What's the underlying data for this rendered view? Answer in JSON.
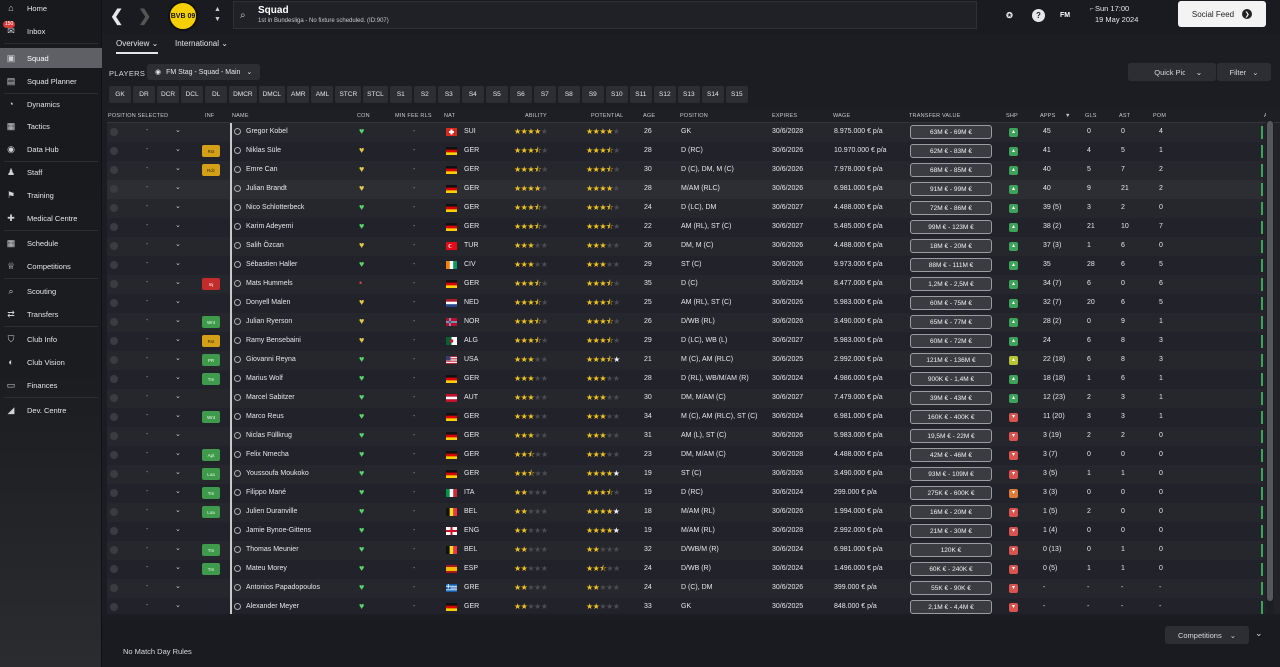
{
  "sidebar": {
    "inbox_badge": "150",
    "items": [
      {
        "label": "Home",
        "icon": "home-icon",
        "glyph": "⌂"
      },
      {
        "label": "Inbox",
        "icon": "inbox-icon",
        "glyph": "✉"
      },
      {
        "label": "Squad",
        "icon": "shirt-icon",
        "glyph": "▣"
      },
      {
        "label": "Squad Planner",
        "icon": "planner-icon",
        "glyph": "▤"
      },
      {
        "label": "Dynamics",
        "icon": "dynamics-icon",
        "glyph": "◔"
      },
      {
        "label": "Tactics",
        "icon": "tactics-icon",
        "glyph": "▦"
      },
      {
        "label": "Data Hub",
        "icon": "data-hub-icon",
        "glyph": "◉"
      },
      {
        "label": "Staff",
        "icon": "staff-icon",
        "glyph": "♟"
      },
      {
        "label": "Training",
        "icon": "training-icon",
        "glyph": "⚑"
      },
      {
        "label": "Medical Centre",
        "icon": "medical-icon",
        "glyph": "✚"
      },
      {
        "label": "Schedule",
        "icon": "calendar-icon",
        "glyph": "▦"
      },
      {
        "label": "Competitions",
        "icon": "trophy-icon",
        "glyph": "♕"
      },
      {
        "label": "Scouting",
        "icon": "scouting-icon",
        "glyph": "⌕"
      },
      {
        "label": "Transfers",
        "icon": "transfers-icon",
        "glyph": "⇄"
      },
      {
        "label": "Club Info",
        "icon": "shield-icon",
        "glyph": "⛉"
      },
      {
        "label": "Club Vision",
        "icon": "vision-icon",
        "glyph": "◐"
      },
      {
        "label": "Finances",
        "icon": "finances-icon",
        "glyph": "▭"
      },
      {
        "label": "Dev. Centre",
        "icon": "dev-centre-icon",
        "glyph": "◢"
      }
    ]
  },
  "header": {
    "club_badge": "BVB 09",
    "title": "Squad",
    "subtitle": "1st in Bundesliga - No fixture scheduled. (ID:907)",
    "day_time": "Sun 17:00",
    "date": "19 May 2024",
    "social_feed": "Social Feed",
    "fm_label": "FM",
    "help_label": "?",
    "notif_count": "5"
  },
  "tabs": {
    "overview": "Overview",
    "international": "International"
  },
  "players_bar": {
    "label": "PLAYERS",
    "view": "FM Stag - Squad - Main",
    "quick_pick": "Quick Pick",
    "filter": "Filter"
  },
  "positions": [
    "GK",
    "DR",
    "DCR",
    "DCL",
    "DL",
    "DMCR",
    "DMCL",
    "AMR",
    "AML",
    "STCR",
    "STCL",
    "S1",
    "S2",
    "S3",
    "S4",
    "S5",
    "S6",
    "S7",
    "S8",
    "S9",
    "S10",
    "S11",
    "S12",
    "S13",
    "S14",
    "S15"
  ],
  "columns": {
    "pos_sel": "POSITION SELECTED",
    "inf": "INF",
    "name": "NAME",
    "con": "CON",
    "min_fee": "MIN FEE RLS",
    "nat": "NAT",
    "ability": "ABILITY",
    "potential": "POTENTIAL",
    "age": "AGE",
    "position": "POSITION",
    "expires": "EXPIRES",
    "wage": "WAGE",
    "tv": "TRANSFER VALUE",
    "shp": "SHP",
    "apps": "APPS",
    "gls": "GLS",
    "ast": "AST",
    "pom": "POM",
    "av": "AV"
  },
  "colors": {
    "star": "#f0c420",
    "green": "#3ea35a",
    "orange": "#d4a017",
    "red": "#c42b2b"
  },
  "players": [
    {
      "name": "Gregor Kobel",
      "inf": "",
      "con": "g",
      "fee": "-",
      "nat": "SUI",
      "flag": "sui",
      "ab": 4,
      "pot": 4,
      "potw": 0,
      "age": "26",
      "pos": "GK",
      "exp": "30/6/2028",
      "wage": "8.975.000 € p/a",
      "tv": "63M € - 69M €",
      "shp": "g",
      "apps": "45",
      "gls": "0",
      "ast": "0",
      "pom": "4"
    },
    {
      "name": "Niklas Süle",
      "inf": "Rst",
      "con": "y",
      "fee": "-",
      "nat": "GER",
      "flag": "ger",
      "ab": 3.5,
      "pot": 3.5,
      "potw": 0,
      "age": "28",
      "pos": "D (RC)",
      "exp": "30/6/2026",
      "wage": "10.970.000 € p/a",
      "tv": "62M € - 83M €",
      "shp": "g",
      "apps": "41",
      "gls": "4",
      "ast": "5",
      "pom": "1"
    },
    {
      "name": "Emre Can",
      "inf": "Rdz",
      "con": "y",
      "fee": "-",
      "nat": "GER",
      "flag": "ger",
      "ab": 3.5,
      "pot": 3.5,
      "potw": 0,
      "age": "30",
      "pos": "D (C), DM, M (C)",
      "exp": "30/6/2026",
      "wage": "7.978.000 € p/a",
      "tv": "68M € - 85M €",
      "shp": "g",
      "apps": "40",
      "gls": "5",
      "ast": "7",
      "pom": "2"
    },
    {
      "name": "Julian Brandt",
      "inf": "",
      "con": "y",
      "fee": "-",
      "nat": "GER",
      "flag": "ger",
      "ab": 4,
      "pot": 4,
      "potw": 0,
      "age": "28",
      "pos": "M/AM (RLC)",
      "exp": "30/6/2026",
      "wage": "6.981.000 € p/a",
      "tv": "91M € - 99M €",
      "shp": "g",
      "apps": "40",
      "gls": "9",
      "ast": "21",
      "pom": "2"
    },
    {
      "name": "Nico Schlotterbeck",
      "inf": "",
      "con": "g",
      "fee": "-",
      "nat": "GER",
      "flag": "ger",
      "ab": 3.5,
      "pot": 3.5,
      "potw": 0,
      "age": "24",
      "pos": "D (LC), DM",
      "exp": "30/6/2027",
      "wage": "4.488.000 € p/a",
      "tv": "72M € - 86M €",
      "shp": "g",
      "apps": "39 (5)",
      "gls": "3",
      "ast": "2",
      "pom": "0"
    },
    {
      "name": "Karim Adeyemi",
      "inf": "",
      "con": "g",
      "fee": "-",
      "nat": "GER",
      "flag": "ger",
      "ab": 3.5,
      "pot": 3.5,
      "potw": 0,
      "age": "22",
      "pos": "AM (RL), ST (C)",
      "exp": "30/6/2027",
      "wage": "5.485.000 € p/a",
      "tv": "99M € - 123M €",
      "shp": "g",
      "apps": "38 (2)",
      "gls": "21",
      "ast": "10",
      "pom": "7"
    },
    {
      "name": "Salih Özcan",
      "inf": "",
      "con": "y",
      "fee": "-",
      "nat": "TUR",
      "flag": "tur",
      "ab": 3,
      "pot": 3,
      "potw": 0,
      "age": "26",
      "pos": "DM, M (C)",
      "exp": "30/6/2026",
      "wage": "4.488.000 € p/a",
      "tv": "18M € - 20M €",
      "shp": "g",
      "apps": "37 (3)",
      "gls": "1",
      "ast": "6",
      "pom": "0"
    },
    {
      "name": "Sébastien Haller",
      "inf": "",
      "con": "g",
      "fee": "-",
      "nat": "CIV",
      "flag": "civ",
      "ab": 3,
      "pot": 3,
      "potw": 0,
      "age": "29",
      "pos": "ST (C)",
      "exp": "30/6/2026",
      "wage": "9.973.000 € p/a",
      "tv": "88M € - 111M €",
      "shp": "g",
      "apps": "35",
      "gls": "28",
      "ast": "6",
      "pom": "5"
    },
    {
      "name": "Mats Hummels",
      "inf": "Inj",
      "con": "r",
      "fee": "-",
      "nat": "GER",
      "flag": "ger",
      "ab": 3.5,
      "pot": 3.5,
      "potw": 0,
      "age": "35",
      "pos": "D (C)",
      "exp": "30/6/2024",
      "wage": "8.477.000 € p/a",
      "tv": "1,2M € - 2,5M €",
      "shp": "g",
      "apps": "34 (7)",
      "gls": "6",
      "ast": "0",
      "pom": "6"
    },
    {
      "name": "Donyell Malen",
      "inf": "",
      "con": "y",
      "fee": "-",
      "nat": "NED",
      "flag": "ned",
      "ab": 3.5,
      "pot": 3.5,
      "potw": 0,
      "age": "25",
      "pos": "AM (RL), ST (C)",
      "exp": "30/6/2026",
      "wage": "5.983.000 € p/a",
      "tv": "60M € - 75M €",
      "shp": "g",
      "apps": "32 (7)",
      "gls": "20",
      "ast": "6",
      "pom": "5"
    },
    {
      "name": "Julian Ryerson",
      "inf": "Wnt",
      "con": "y",
      "fee": "-",
      "nat": "NOR",
      "flag": "nor",
      "ab": 3.5,
      "pot": 3.5,
      "potw": 0,
      "age": "26",
      "pos": "D/WB (RL)",
      "exp": "30/6/2026",
      "wage": "3.490.000 € p/a",
      "tv": "65M € - 77M €",
      "shp": "g",
      "apps": "28 (2)",
      "gls": "0",
      "ast": "9",
      "pom": "1"
    },
    {
      "name": "Ramy Bensebaini",
      "inf": "Rst",
      "con": "y",
      "fee": "-",
      "nat": "ALG",
      "flag": "alg",
      "ab": 3.5,
      "pot": 3.5,
      "potw": 0,
      "age": "29",
      "pos": "D (LC), WB (L)",
      "exp": "30/6/2027",
      "wage": "5.983.000 € p/a",
      "tv": "60M € - 72M €",
      "shp": "g",
      "apps": "24",
      "gls": "6",
      "ast": "8",
      "pom": "3"
    },
    {
      "name": "Giovanni Reyna",
      "inf": "PR",
      "con": "g",
      "fee": "-",
      "nat": "USA",
      "flag": "usa",
      "ab": 3,
      "pot": 3.5,
      "potw": 1,
      "age": "21",
      "pos": "M (C), AM (RLC)",
      "exp": "30/6/2025",
      "wage": "2.992.000 € p/a",
      "tv": "121M € - 136M €",
      "shp": "y",
      "apps": "22 (18)",
      "gls": "6",
      "ast": "8",
      "pom": "3"
    },
    {
      "name": "Marius Wolf",
      "inf": "Tm",
      "con": "g",
      "fee": "-",
      "nat": "GER",
      "flag": "ger",
      "ab": 3,
      "pot": 3,
      "potw": 0,
      "age": "28",
      "pos": "D (RL), WB/M/AM (R)",
      "exp": "30/6/2024",
      "wage": "4.986.000 € p/a",
      "tv": "900K € - 1,4M €",
      "shp": "g",
      "apps": "18 (18)",
      "gls": "1",
      "ast": "6",
      "pom": "1"
    },
    {
      "name": "Marcel Sabitzer",
      "inf": "",
      "con": "g",
      "fee": "-",
      "nat": "AUT",
      "flag": "aut",
      "ab": 3,
      "pot": 3,
      "potw": 0,
      "age": "30",
      "pos": "DM, M/AM (C)",
      "exp": "30/6/2027",
      "wage": "7.479.000 € p/a",
      "tv": "39M € - 43M €",
      "shp": "g",
      "apps": "12 (23)",
      "gls": "2",
      "ast": "3",
      "pom": "1"
    },
    {
      "name": "Marco Reus",
      "inf": "Wnt",
      "con": "g",
      "fee": "-",
      "nat": "GER",
      "flag": "ger",
      "ab": 3,
      "pot": 3,
      "potw": 0,
      "age": "34",
      "pos": "M (C), AM (RLC), ST (C)",
      "exp": "30/6/2024",
      "wage": "6.981.000 € p/a",
      "tv": "160K € - 400K €",
      "shp": "r",
      "apps": "11 (20)",
      "gls": "3",
      "ast": "3",
      "pom": "1"
    },
    {
      "name": "Niclas Füllkrug",
      "inf": "",
      "con": "g",
      "fee": "-",
      "nat": "GER",
      "flag": "ger",
      "ab": 3,
      "pot": 3,
      "potw": 0,
      "age": "31",
      "pos": "AM (L), ST (C)",
      "exp": "30/6/2026",
      "wage": "5.983.000 € p/a",
      "tv": "19,5M € - 22M €",
      "shp": "r",
      "apps": "3 (19)",
      "gls": "2",
      "ast": "2",
      "pom": "0"
    },
    {
      "name": "Felix Nmecha",
      "inf": "Apt",
      "con": "g",
      "fee": "-",
      "nat": "GER",
      "flag": "ger",
      "ab": 2.5,
      "pot": 3,
      "potw": 0,
      "age": "23",
      "pos": "DM, M/AM (C)",
      "exp": "30/6/2028",
      "wage": "4.488.000 € p/a",
      "tv": "42M € - 46M €",
      "shp": "r",
      "apps": "3 (7)",
      "gls": "0",
      "ast": "0",
      "pom": "0"
    },
    {
      "name": "Youssoufa Moukoko",
      "inf": "Loa",
      "con": "g",
      "fee": "-",
      "nat": "GER",
      "flag": "ger",
      "ab": 2.5,
      "pot": 4,
      "potw": 1,
      "age": "19",
      "pos": "ST (C)",
      "exp": "30/6/2026",
      "wage": "3.490.000 € p/a",
      "tv": "93M € - 109M €",
      "shp": "r",
      "apps": "3 (5)",
      "gls": "1",
      "ast": "1",
      "pom": "0"
    },
    {
      "name": "Filippo Mané",
      "inf": "Tm",
      "con": "g",
      "fee": "-",
      "nat": "ITA",
      "flag": "ita",
      "ab": 2,
      "pot": 3.5,
      "potw": 0,
      "age": "19",
      "pos": "D (RC)",
      "exp": "30/6/2024",
      "wage": "299.000 € p/a",
      "tv": "275K € - 600K €",
      "shp": "o",
      "apps": "3 (3)",
      "gls": "0",
      "ast": "0",
      "pom": "0"
    },
    {
      "name": "Julien Duranville",
      "inf": "Loa",
      "con": "g",
      "fee": "-",
      "nat": "BEL",
      "flag": "bel",
      "ab": 2,
      "pot": 4,
      "potw": 1,
      "age": "18",
      "pos": "M/AM (RL)",
      "exp": "30/6/2026",
      "wage": "1.994.000 € p/a",
      "tv": "16M € - 20M €",
      "shp": "r",
      "apps": "1 (5)",
      "gls": "2",
      "ast": "0",
      "pom": "0"
    },
    {
      "name": "Jamie Bynoe-Gittens",
      "inf": "",
      "con": "g",
      "fee": "-",
      "nat": "ENG",
      "flag": "eng",
      "ab": 2,
      "pot": 4,
      "potw": 1,
      "age": "19",
      "pos": "M/AM (RL)",
      "exp": "30/6/2028",
      "wage": "2.992.000 € p/a",
      "tv": "21M € - 30M €",
      "shp": "r",
      "apps": "1 (4)",
      "gls": "0",
      "ast": "0",
      "pom": "0"
    },
    {
      "name": "Thomas Meunier",
      "inf": "Tm",
      "con": "g",
      "fee": "-",
      "nat": "BEL",
      "flag": "bel",
      "ab": 2,
      "pot": 2,
      "potw": 0,
      "age": "32",
      "pos": "D/WB/M (R)",
      "exp": "30/6/2024",
      "wage": "6.981.000 € p/a",
      "tv": "120K €",
      "shp": "r",
      "apps": "0 (13)",
      "gls": "0",
      "ast": "1",
      "pom": "0"
    },
    {
      "name": "Mateu Morey",
      "inf": "Tm",
      "con": "g",
      "fee": "-",
      "nat": "ESP",
      "flag": "esp",
      "ab": 2,
      "pot": 2.5,
      "potw": 0,
      "age": "24",
      "pos": "D/WB (R)",
      "exp": "30/6/2024",
      "wage": "1.496.000 € p/a",
      "tv": "60K € - 240K €",
      "shp": "r",
      "apps": "0 (5)",
      "gls": "1",
      "ast": "1",
      "pom": "0"
    },
    {
      "name": "Antonios Papadopoulos",
      "inf": "",
      "con": "g",
      "fee": "-",
      "nat": "GRE",
      "flag": "gre",
      "ab": 2,
      "pot": 2,
      "potw": 0,
      "age": "24",
      "pos": "D (C), DM",
      "exp": "30/6/2026",
      "wage": "399.000 € p/a",
      "tv": "55K € - 90K €",
      "shp": "r",
      "apps": "-",
      "gls": "-",
      "ast": "-",
      "pom": "-"
    },
    {
      "name": "Alexander Meyer",
      "inf": "",
      "con": "g",
      "fee": "-",
      "nat": "GER",
      "flag": "ger",
      "ab": 2,
      "pot": 2,
      "potw": 0,
      "age": "33",
      "pos": "GK",
      "exp": "30/6/2025",
      "wage": "848.000 € p/a",
      "tv": "2,1M € - 4,4M €",
      "shp": "r",
      "apps": "-",
      "gls": "-",
      "ast": "-",
      "pom": "-"
    }
  ],
  "footer": {
    "no_match": "No Match Day Rules",
    "competitions": "Competitions"
  }
}
